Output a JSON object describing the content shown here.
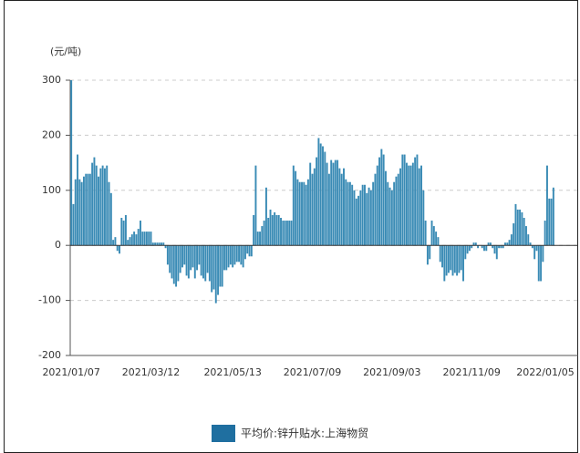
{
  "chart_data": {
    "type": "bar",
    "y_label": "(元/吨)",
    "legend": "平均价:锌升贴水:上海物贸",
    "color": "#3a8bb5",
    "ylim": [
      -200,
      300
    ],
    "yticks": [
      -200,
      -100,
      0,
      100,
      200,
      300
    ],
    "grid": true,
    "categories": [
      "2021/01/07",
      null,
      null,
      null,
      null,
      null,
      null,
      null,
      null,
      null,
      null,
      null,
      null,
      null,
      null,
      null,
      null,
      null,
      null,
      null,
      null,
      null,
      null,
      null,
      null,
      null,
      null,
      null,
      null,
      null,
      null,
      null,
      null,
      null,
      null,
      null,
      null,
      null,
      "2021/03/12",
      null,
      null,
      null,
      null,
      null,
      null,
      null,
      null,
      null,
      null,
      null,
      null,
      null,
      null,
      null,
      null,
      null,
      null,
      null,
      null,
      null,
      null,
      null,
      null,
      null,
      null,
      null,
      null,
      null,
      null,
      null,
      null,
      null,
      null,
      null,
      null,
      null,
      null,
      "2021/05/13",
      null,
      null,
      null,
      null,
      null,
      null,
      null,
      null,
      null,
      null,
      null,
      null,
      null,
      null,
      null,
      null,
      null,
      null,
      null,
      null,
      null,
      null,
      null,
      null,
      null,
      null,
      null,
      null,
      null,
      null,
      null,
      null,
      null,
      null,
      null,
      null,
      null,
      "2021/07/09",
      null,
      null,
      null,
      null,
      null,
      null,
      null,
      null,
      null,
      null,
      null,
      null,
      null,
      null,
      null,
      null,
      null,
      null,
      null,
      null,
      null,
      null,
      null,
      null,
      null,
      null,
      null,
      null,
      null,
      null,
      null,
      null,
      null,
      null,
      null,
      null,
      null,
      "2021/09/03",
      null,
      null,
      null,
      null,
      null,
      null,
      null,
      null,
      null,
      null,
      null,
      null,
      null,
      null,
      null,
      null,
      null,
      null,
      null,
      null,
      null,
      null,
      null,
      null,
      null,
      null,
      null,
      null,
      null,
      null,
      null,
      null,
      null,
      null,
      null,
      null,
      null,
      "2021/11/09",
      null,
      null,
      null,
      null,
      null,
      null,
      null,
      null,
      null,
      null,
      null,
      null,
      null,
      null,
      null,
      null,
      null,
      null,
      null,
      null,
      null,
      null,
      null,
      null,
      null,
      null,
      null,
      null,
      null,
      null,
      null,
      null,
      null,
      null,
      null,
      null,
      null,
      null,
      "2022/01/05"
    ],
    "values": [
      300,
      75,
      120,
      165,
      120,
      115,
      125,
      130,
      130,
      130,
      150,
      160,
      145,
      125,
      140,
      145,
      140,
      145,
      115,
      95,
      10,
      15,
      -10,
      -15,
      50,
      45,
      55,
      10,
      15,
      20,
      25,
      20,
      30,
      45,
      25,
      25,
      25,
      25,
      25,
      5,
      5,
      5,
      5,
      5,
      5,
      -5,
      -35,
      -50,
      -60,
      -70,
      -75,
      -65,
      -50,
      -40,
      -35,
      -55,
      -60,
      -45,
      -40,
      -60,
      -45,
      -35,
      -55,
      -60,
      -65,
      -50,
      -65,
      -85,
      -80,
      -105,
      -90,
      -75,
      -75,
      -45,
      -45,
      -40,
      -35,
      -40,
      -35,
      -30,
      -30,
      -35,
      -40,
      -25,
      -15,
      -20,
      -20,
      55,
      145,
      25,
      25,
      35,
      45,
      105,
      50,
      65,
      55,
      60,
      55,
      55,
      50,
      45,
      45,
      45,
      45,
      45,
      145,
      135,
      120,
      115,
      115,
      115,
      110,
      120,
      150,
      130,
      140,
      160,
      195,
      185,
      180,
      170,
      150,
      130,
      155,
      150,
      155,
      155,
      140,
      130,
      140,
      120,
      115,
      115,
      110,
      100,
      85,
      90,
      100,
      110,
      110,
      95,
      105,
      100,
      115,
      130,
      145,
      160,
      175,
      165,
      135,
      115,
      105,
      100,
      115,
      125,
      130,
      140,
      165,
      165,
      150,
      145,
      145,
      150,
      160,
      165,
      140,
      145,
      100,
      45,
      -35,
      -25,
      45,
      35,
      25,
      15,
      -30,
      -40,
      -65,
      -55,
      -50,
      -45,
      -55,
      -50,
      -55,
      -50,
      -45,
      -65,
      -25,
      -15,
      -10,
      -5,
      5,
      5,
      -5,
      0,
      -5,
      -10,
      -10,
      5,
      5,
      -5,
      -15,
      -25,
      -5,
      -5,
      -5,
      5,
      5,
      10,
      20,
      40,
      75,
      65,
      65,
      60,
      50,
      35,
      20,
      5,
      -5,
      -25,
      -10,
      -65,
      -65,
      -30,
      45,
      145,
      85,
      85,
      105
    ]
  }
}
